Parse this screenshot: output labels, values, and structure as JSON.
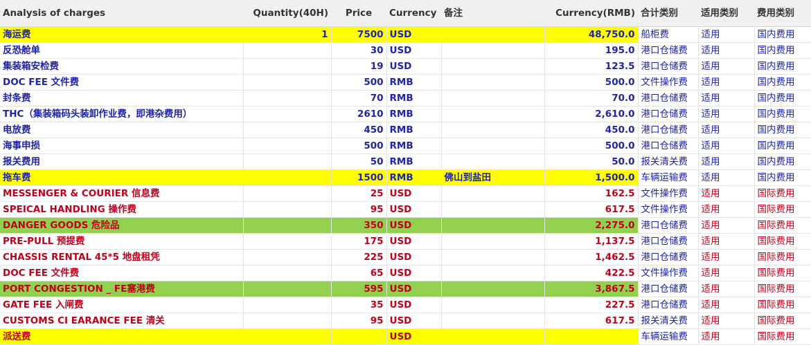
{
  "headers": {
    "analysis": "Analysis of charges",
    "quantity": "Quantity(40H)",
    "price": "Price",
    "currency": "Currency",
    "note": "备注",
    "currency_rmb": "Currency(RMB)",
    "total_cat": "合计类别",
    "apply_cat": "适用类别",
    "fee_cat": "费用类别"
  },
  "colors": {
    "yellow": "#ffff00",
    "green": "#92d050",
    "blue": "#1f24a8",
    "red": "#c0001a"
  },
  "rows": [
    {
      "name": "海运费",
      "qty": "1",
      "price": "7500",
      "currency": "USD",
      "note": "",
      "rmb": "48,750.0",
      "total_cat": "船柜费",
      "apply_cat": "适用",
      "fee_cat": "国内费用",
      "text_color": "blue",
      "highlight": "yellow"
    },
    {
      "name": "反恐舱单",
      "qty": "",
      "price": "30",
      "currency": "USD",
      "note": "",
      "rmb": "195.0",
      "total_cat": "港口仓储费",
      "apply_cat": "适用",
      "fee_cat": "国内费用",
      "text_color": "blue",
      "highlight": ""
    },
    {
      "name": "集装箱安检费",
      "qty": "",
      "price": "19",
      "currency": "USD",
      "note": "",
      "rmb": "123.5",
      "total_cat": "港口仓储费",
      "apply_cat": "适用",
      "fee_cat": "国内费用",
      "text_color": "blue",
      "highlight": ""
    },
    {
      "name": "DOC FEE 文件费",
      "qty": "",
      "price": "500",
      "currency": "RMB",
      "note": "",
      "rmb": "500.0",
      "total_cat": "文件操作费",
      "apply_cat": "适用",
      "fee_cat": "国内费用",
      "text_color": "blue",
      "highlight": ""
    },
    {
      "name": "封条费",
      "qty": "",
      "price": "70",
      "currency": "RMB",
      "note": "",
      "rmb": "70.0",
      "total_cat": "港口仓储费",
      "apply_cat": "适用",
      "fee_cat": "国内费用",
      "text_color": "blue",
      "highlight": ""
    },
    {
      "name": "THC（集装箱码头装卸作业费，即港杂费用）",
      "qty": "",
      "price": "2610",
      "currency": "RMB",
      "note": "",
      "rmb": "2,610.0",
      "total_cat": "港口仓储费",
      "apply_cat": "适用",
      "fee_cat": "国内费用",
      "text_color": "blue",
      "highlight": ""
    },
    {
      "name": "电放费",
      "qty": "",
      "price": "450",
      "currency": "RMB",
      "note": "",
      "rmb": "450.0",
      "total_cat": "港口仓储费",
      "apply_cat": "适用",
      "fee_cat": "国内费用",
      "text_color": "blue",
      "highlight": ""
    },
    {
      "name": "海事申损",
      "qty": "",
      "price": "500",
      "currency": "RMB",
      "note": "",
      "rmb": "500.0",
      "total_cat": "港口仓储费",
      "apply_cat": "适用",
      "fee_cat": "国内费用",
      "text_color": "blue",
      "highlight": ""
    },
    {
      "name": "报关费用",
      "qty": "",
      "price": "50",
      "currency": "RMB",
      "note": "",
      "rmb": "50.0",
      "total_cat": "报关清关费",
      "apply_cat": "适用",
      "fee_cat": "国内费用",
      "text_color": "blue",
      "highlight": ""
    },
    {
      "name": "拖车费",
      "qty": "",
      "price": "1500",
      "currency": "RMB",
      "note": "佛山到盐田",
      "rmb": "1,500.0",
      "total_cat": "车辆运输费",
      "apply_cat": "适用",
      "fee_cat": "国内费用",
      "text_color": "blue",
      "highlight": "yellow"
    },
    {
      "name": "MESSENGER & COURIER 信息费",
      "qty": "",
      "price": "25",
      "currency": "USD",
      "note": "",
      "rmb": "162.5",
      "total_cat": "文件操作费",
      "apply_cat": "适用",
      "fee_cat": "国际费用",
      "text_color": "red",
      "highlight": ""
    },
    {
      "name": "SPEICAL HANDLING 操作费",
      "qty": "",
      "price": "95",
      "currency": "USD",
      "note": "",
      "rmb": "617.5",
      "total_cat": "文件操作费",
      "apply_cat": "适用",
      "fee_cat": "国际费用",
      "text_color": "red",
      "highlight": ""
    },
    {
      "name": "DANGER GOODS 危险品",
      "qty": "",
      "price": "350",
      "currency": "USD",
      "note": "",
      "rmb": "2,275.0",
      "total_cat": "港口仓储费",
      "apply_cat": "适用",
      "fee_cat": "国际费用",
      "text_color": "red",
      "highlight": "green"
    },
    {
      "name": "PRE-PULL 预提费",
      "qty": "",
      "price": "175",
      "currency": "USD",
      "note": "",
      "rmb": "1,137.5",
      "total_cat": "港口仓储费",
      "apply_cat": "适用",
      "fee_cat": "国际费用",
      "text_color": "red",
      "highlight": ""
    },
    {
      "name": "CHASSIS RENTAL 45*5 地盘租凭",
      "qty": "",
      "price": "225",
      "currency": "USD",
      "note": "",
      "rmb": "1,462.5",
      "total_cat": "港口仓储费",
      "apply_cat": "适用",
      "fee_cat": "国际费用",
      "text_color": "red",
      "highlight": ""
    },
    {
      "name": "DOC FEE 文件费",
      "qty": "",
      "price": "65",
      "currency": "USD",
      "note": "",
      "rmb": "422.5",
      "total_cat": "文件操作费",
      "apply_cat": "适用",
      "fee_cat": "国际费用",
      "text_color": "red",
      "highlight": ""
    },
    {
      "name": "PORT CONGESTION _ FE塞港费",
      "qty": "",
      "price": "595",
      "currency": "USD",
      "note": "",
      "rmb": "3,867.5",
      "total_cat": "港口仓储费",
      "apply_cat": "适用",
      "fee_cat": "国际费用",
      "text_color": "red",
      "highlight": "green"
    },
    {
      "name": "GATE FEE 入闸费",
      "qty": "",
      "price": "35",
      "currency": "USD",
      "note": "",
      "rmb": "227.5",
      "total_cat": "港口仓储费",
      "apply_cat": "适用",
      "fee_cat": "国际费用",
      "text_color": "red",
      "highlight": ""
    },
    {
      "name": "CUSTOMS CI EARANCE FEE 清关",
      "qty": "",
      "price": "95",
      "currency": "USD",
      "note": "",
      "rmb": "617.5",
      "total_cat": "报关清关费",
      "apply_cat": "适用",
      "fee_cat": "国际费用",
      "text_color": "red",
      "highlight": ""
    },
    {
      "name": "派送费",
      "qty": "",
      "price": "",
      "currency": "USD",
      "note": "",
      "rmb": "",
      "total_cat": "车辆运输费",
      "apply_cat": "适用",
      "fee_cat": "国际费用",
      "text_color": "red",
      "highlight": "yellow"
    }
  ]
}
